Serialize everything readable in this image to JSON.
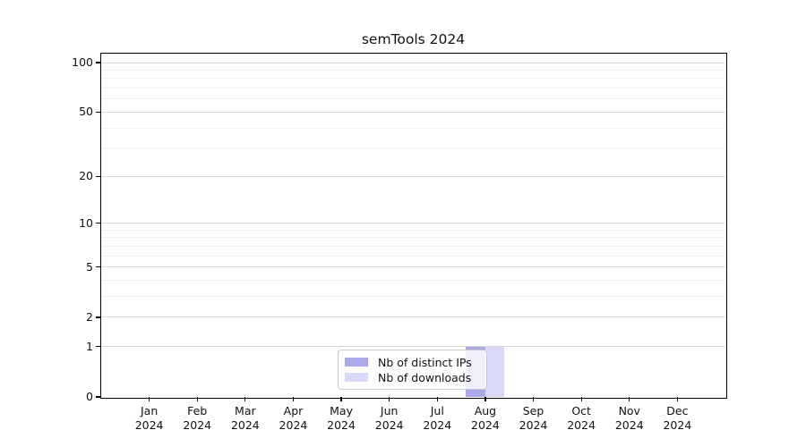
{
  "chart_data": {
    "type": "bar",
    "title": "semTools 2024",
    "categories": [
      "Jan 2024",
      "Feb 2024",
      "Mar 2024",
      "Apr 2024",
      "May 2024",
      "Jun 2024",
      "Jul 2024",
      "Aug 2024",
      "Sep 2024",
      "Oct 2024",
      "Nov 2024",
      "Dec 2024"
    ],
    "series": [
      {
        "name": "Nb of distinct IPs",
        "color": "#a9a9ec",
        "values": [
          0,
          0,
          0,
          0,
          0,
          0,
          0,
          1,
          0,
          0,
          0,
          0
        ]
      },
      {
        "name": "Nb of downloads",
        "color": "#d9d9f7",
        "values": [
          0,
          0,
          0,
          0,
          0,
          0,
          0,
          1,
          0,
          0,
          0,
          0
        ]
      }
    ],
    "xlabel": "",
    "ylabel": "",
    "y_scale": "log1p",
    "y_major_ticks": [
      0,
      1,
      2,
      5,
      10,
      20,
      50,
      100
    ],
    "y_minor_ticks": [
      3,
      4,
      6,
      7,
      8,
      9,
      30,
      40,
      60,
      70,
      80,
      90
    ],
    "ylim": [
      0,
      113
    ],
    "grid": true,
    "legend_position": "lower-center",
    "grid_major_color": "#d6d6d6",
    "grid_minor_color": "#f1f1f1",
    "axis_color": "#000000",
    "background_color": "#ffffff"
  }
}
